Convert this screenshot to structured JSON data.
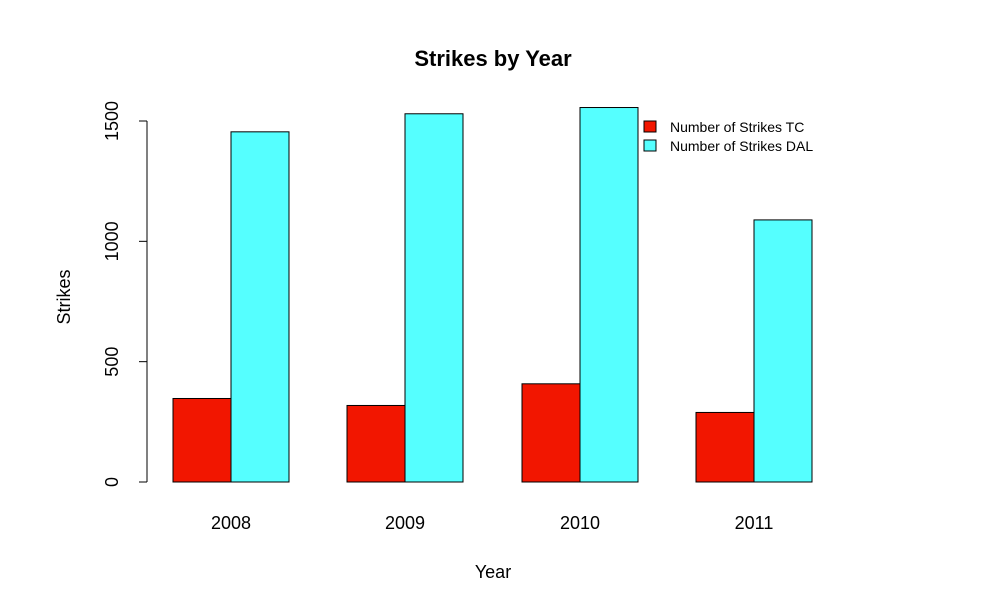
{
  "chart_data": {
    "type": "bar",
    "title": "Strikes by Year",
    "xlabel": "Year",
    "ylabel": "Strikes",
    "categories": [
      "2008",
      "2009",
      "2010",
      "2011"
    ],
    "series": [
      {
        "name": "Number of Strikes TC",
        "color": "#f21600",
        "values": [
          347,
          318,
          408,
          289
        ]
      },
      {
        "name": "Number of Strikes DAL",
        "color": "#55ffff",
        "values": [
          1455,
          1530,
          1556,
          1089
        ]
      }
    ],
    "ylim": [
      0,
      1500
    ],
    "yticks": [
      "0",
      "500",
      "1000",
      "1500"
    ],
    "legend": {
      "position": "top-right"
    },
    "grid": false
  }
}
